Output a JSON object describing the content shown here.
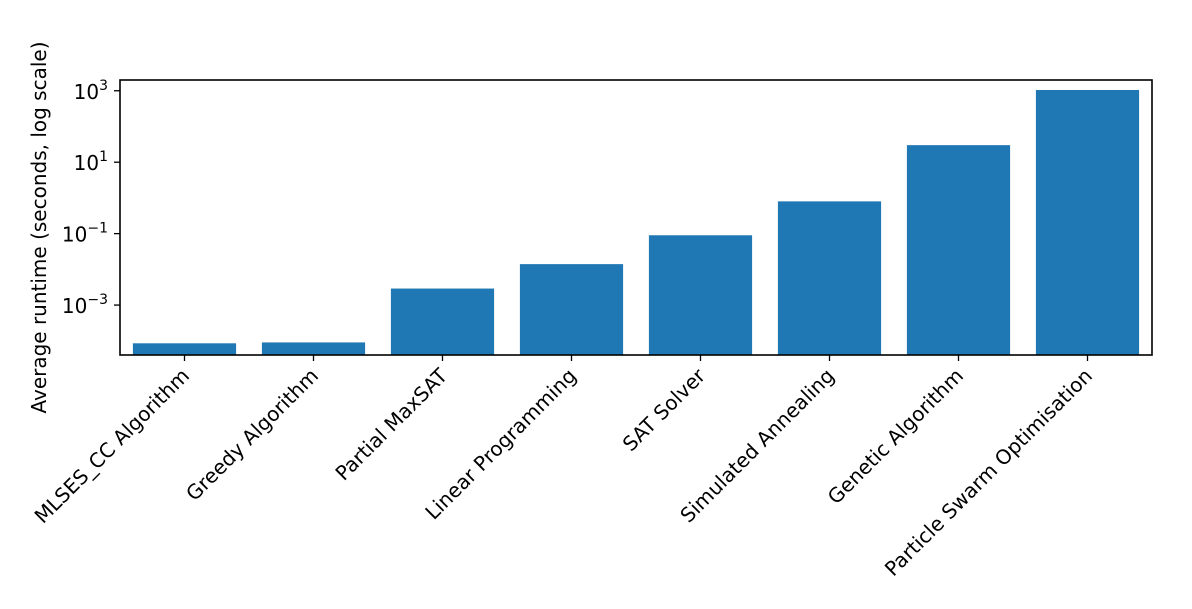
{
  "chart_data": {
    "type": "bar",
    "title": "",
    "xlabel": "",
    "ylabel": "Average runtime (seconds, log scale)",
    "yscale": "log",
    "ylim": [
      4e-05,
      2000
    ],
    "yticks": [
      {
        "value": 0.001,
        "base": "10",
        "exponent": "−3"
      },
      {
        "value": 0.1,
        "base": "10",
        "exponent": "−1"
      },
      {
        "value": 10,
        "base": "10",
        "exponent": "1"
      },
      {
        "value": 1000,
        "base": "10",
        "exponent": "3"
      }
    ],
    "categories": [
      "MLSES_CC Algorithm",
      "Greedy Algorithm",
      "Partial MaxSAT",
      "Linear Programming",
      "SAT Solver",
      "Simulated Annealing",
      "Genetic Algorithm",
      "Particle Swarm Optimisation"
    ],
    "values": [
      8.5e-05,
      9e-05,
      0.0029,
      0.014,
      0.09,
      0.8,
      30,
      1050
    ],
    "bar_color": "#1f77b4",
    "grid": false,
    "legend": "none"
  }
}
